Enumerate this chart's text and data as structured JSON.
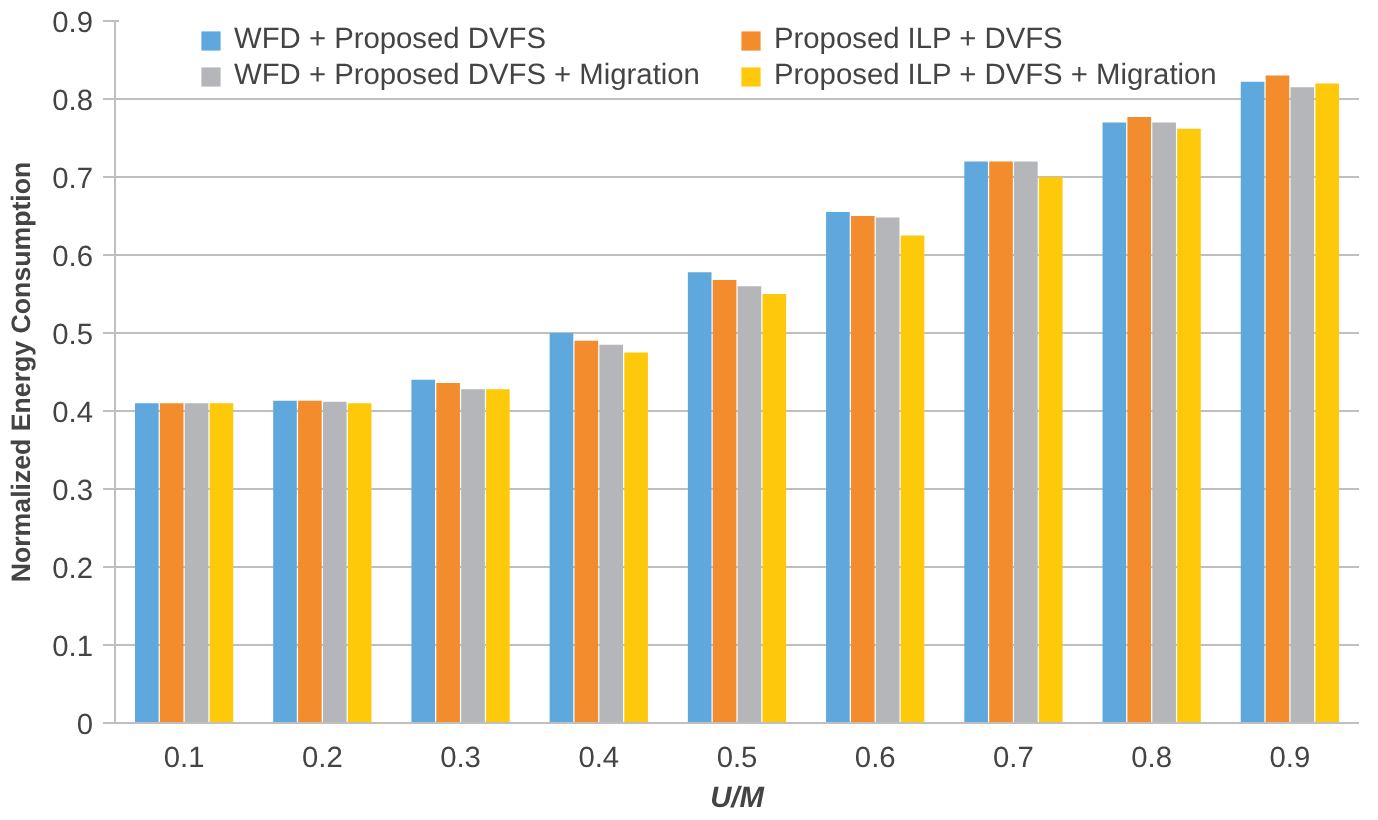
{
  "chart_data": {
    "type": "bar",
    "xlabel": "U/M",
    "ylabel": "Normalized Energy Consumption",
    "categories": [
      "0.1",
      "0.2",
      "0.3",
      "0.4",
      "0.5",
      "0.6",
      "0.7",
      "0.8",
      "0.9"
    ],
    "series": [
      {
        "name": "WFD + Proposed DVFS",
        "color": "#5fa8dd",
        "values": [
          0.41,
          0.413,
          0.44,
          0.5,
          0.578,
          0.655,
          0.72,
          0.77,
          0.822
        ]
      },
      {
        "name": "Proposed ILP + DVFS",
        "color": "#f28c2c",
        "values": [
          0.41,
          0.413,
          0.436,
          0.49,
          0.568,
          0.65,
          0.72,
          0.777,
          0.83
        ]
      },
      {
        "name": "WFD + Proposed DVFS + Migration",
        "color": "#b5b6ba",
        "values": [
          0.41,
          0.412,
          0.428,
          0.485,
          0.56,
          0.648,
          0.72,
          0.77,
          0.815
        ]
      },
      {
        "name": "Proposed ILP + DVFS + Migration",
        "color": "#ffc90b",
        "values": [
          0.41,
          0.41,
          0.428,
          0.475,
          0.55,
          0.625,
          0.7,
          0.762,
          0.82
        ]
      }
    ],
    "ylim": [
      0,
      0.9
    ],
    "yticks": [
      0,
      0.1,
      0.2,
      0.3,
      0.4,
      0.5,
      0.6,
      0.7,
      0.8,
      0.9
    ],
    "grid": "y",
    "legend": "top"
  }
}
